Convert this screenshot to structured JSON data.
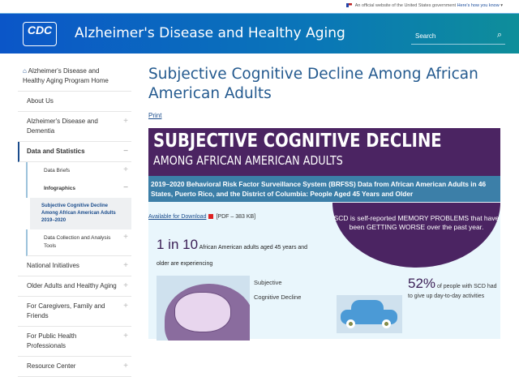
{
  "gov_banner": {
    "text": "An official website of the United States government",
    "link": "Here's how you know"
  },
  "header": {
    "logo": "CDC",
    "title": "Alzheimer's Disease and Healthy Aging",
    "search_placeholder": "Search"
  },
  "sidebar": {
    "home": "Alzheimer's Disease and Healthy Aging Program Home",
    "items": [
      {
        "label": "About Us"
      },
      {
        "label": "Alzheimer's Disease and Dementia"
      },
      {
        "label": "Data and Statistics"
      }
    ],
    "sub": [
      {
        "label": "Data Briefs"
      },
      {
        "label": "Infographics"
      }
    ],
    "current": "Subjective Cognitive Decline Among African American Adults 2019–2020",
    "sub2": "Data Collection and Analysis Tools",
    "items2": [
      {
        "label": "National Initiatives"
      },
      {
        "label": "Older Adults and Healthy Aging"
      },
      {
        "label": "For Caregivers, Family and Friends"
      },
      {
        "label": "For Public Health Professionals"
      },
      {
        "label": "Resource Center"
      }
    ]
  },
  "main": {
    "title": "Subjective Cognitive Decline Among African American Adults",
    "print": "Print",
    "infographic": {
      "title1": "Subjective Cognitive Decline",
      "title2": "AMONG AFRICAN AMERICAN ADULTS",
      "subtitle": "2019–2020 Behavioral Risk Factor Surveillance System (BRFSS) Data from African American Adults in 46 States, Puerto Rico, and the District of Columbia: People Aged 45 Years and Older",
      "download": "Available for Download",
      "pdf": "[PDF – 383 KB]",
      "scd_def": "SCD is self-reported MEMORY PROBLEMS that have been GETTING WORSE over the past year.",
      "stat1_big": "1 in 10",
      "stat1_text": "African American adults aged 45 years and older are experiencing",
      "scd_l1": "Subjective",
      "scd_l2": "Cognitive Decline",
      "stat2_big": "52%",
      "stat2_text": "of people with SCD had to give up day-to-day activities"
    }
  }
}
